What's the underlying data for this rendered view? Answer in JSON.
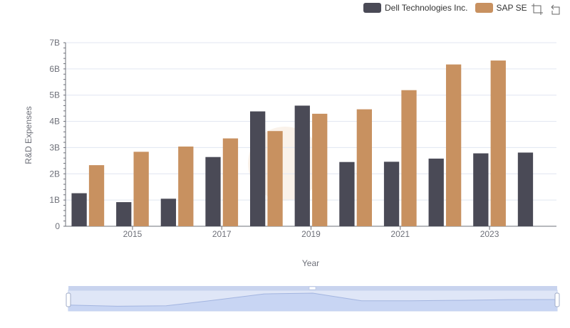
{
  "legend": [
    {
      "name": "Dell Technologies Inc.",
      "color": "#4a4a56"
    },
    {
      "name": "SAP SE",
      "color": "#c89160"
    }
  ],
  "toolbox": {
    "icons": [
      "zoom-icon",
      "restore-icon"
    ]
  },
  "chart_data": {
    "type": "bar",
    "x": [
      2014,
      2015,
      2016,
      2017,
      2018,
      2019,
      2020,
      2021,
      2022,
      2023,
      2024
    ],
    "series": [
      {
        "name": "Dell Technologies Inc.",
        "color": "#4a4a56",
        "values": [
          1.26,
          0.92,
          1.05,
          2.64,
          4.38,
          4.6,
          2.45,
          2.46,
          2.58,
          2.78,
          2.81
        ]
      },
      {
        "name": "SAP SE",
        "color": "#c89160",
        "values": [
          2.33,
          2.84,
          3.04,
          3.35,
          3.63,
          4.29,
          4.46,
          5.19,
          6.17,
          6.32,
          null
        ]
      }
    ],
    "xlabel": "Year",
    "ylabel": "R&D Expenses",
    "ylim": [
      0,
      7
    ],
    "yticks": [
      "0",
      "1B",
      "2B",
      "3B",
      "4B",
      "5B",
      "6B",
      "7B"
    ],
    "xticks": [
      "2015",
      "2017",
      "2019",
      "2021",
      "2023"
    ],
    "grid": true,
    "legend_position": "top-right",
    "datazoom_slider": true
  }
}
